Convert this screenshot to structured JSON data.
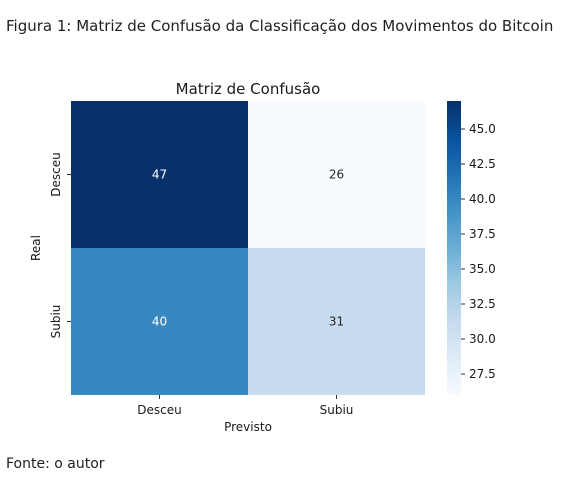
{
  "caption": "Figura 1: Matriz de Confusão da Classificação dos Movimentos do Bitcoin",
  "source": "Fonte: o autor",
  "chart_data": {
    "type": "heatmap",
    "title": "Matriz de Confusão",
    "xlabel": "Previsto",
    "ylabel": "Real",
    "x_categories": [
      "Desceu",
      "Subiu"
    ],
    "y_categories": [
      "Desceu",
      "Subiu"
    ],
    "values": [
      [
        47,
        26
      ],
      [
        40,
        31
      ]
    ],
    "cell_labels": [
      [
        "47",
        "26"
      ],
      [
        "40",
        "31"
      ]
    ],
    "colormap": "Blues",
    "colorbar": {
      "min": 26,
      "max": 47,
      "ticks": [
        27.5,
        30.0,
        32.5,
        35.0,
        37.5,
        40.0,
        42.5,
        45.0
      ],
      "tick_labels": [
        "27.5",
        "30.0",
        "32.5",
        "35.0",
        "37.5",
        "40.0",
        "42.5",
        "45.0"
      ]
    },
    "cell_colors": [
      [
        "#08306b",
        "#f7fbff"
      ],
      [
        "#3787c0",
        "#c8dcf0"
      ]
    ],
    "cell_text_colors": [
      [
        "#ffffff",
        "#262626"
      ],
      [
        "#ffffff",
        "#262626"
      ]
    ]
  }
}
